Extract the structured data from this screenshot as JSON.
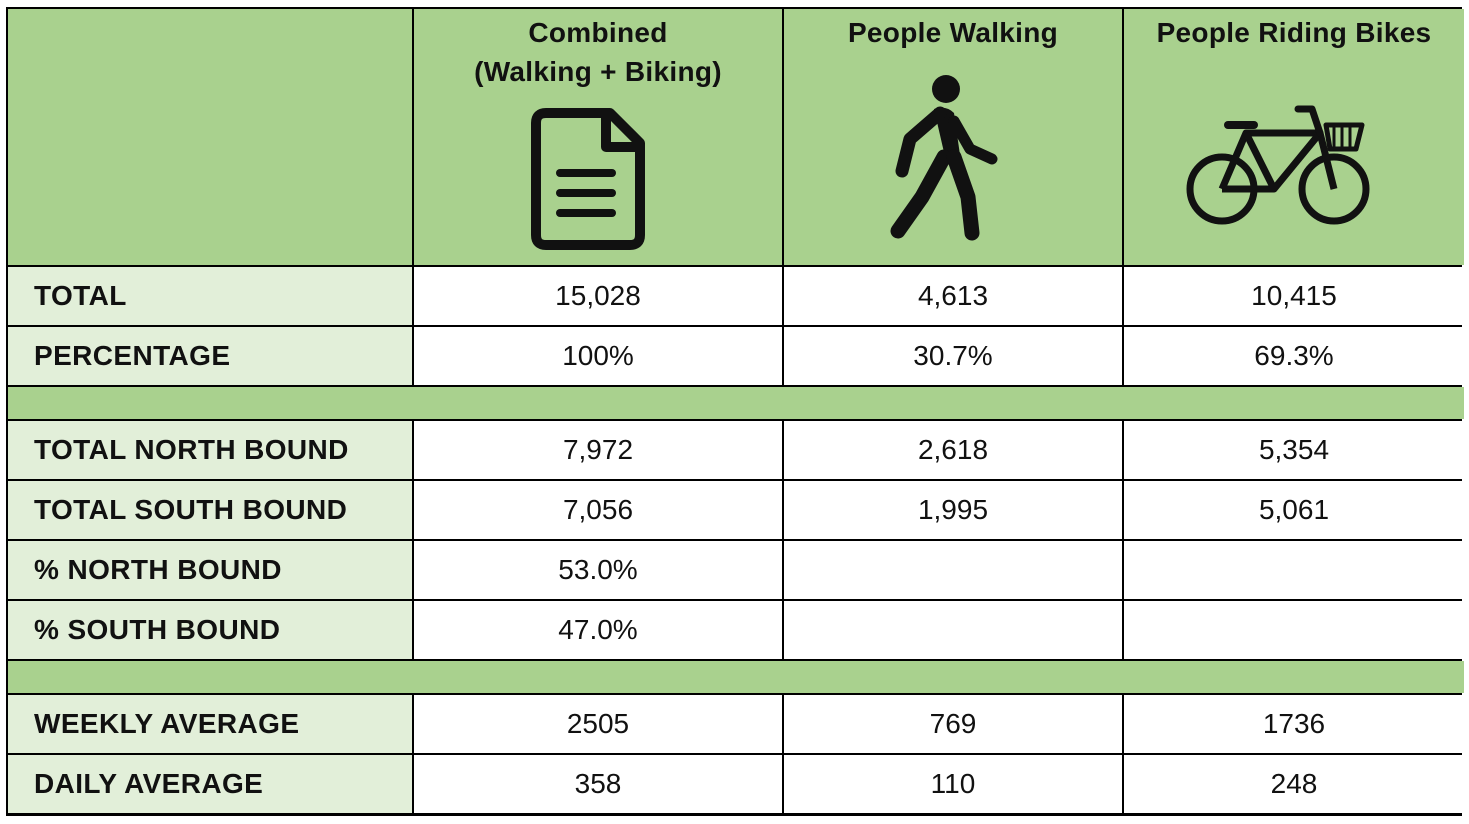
{
  "header": {
    "columns": [
      {
        "title": "Combined\n(Walking + Biking)",
        "icon": "document-icon"
      },
      {
        "title": "People Walking",
        "icon": "pedestrian-icon"
      },
      {
        "title": "People Riding Bikes",
        "icon": "bicycle-icon"
      }
    ]
  },
  "rows": {
    "total": {
      "label": "TOTAL",
      "values": [
        "15,028",
        "4,613",
        "10,415"
      ]
    },
    "percentage": {
      "label": "PERCENTAGE",
      "values": [
        "100%",
        "30.7%",
        "69.3%"
      ]
    },
    "total_north": {
      "label": "TOTAL NORTH BOUND",
      "values": [
        "7,972",
        "2,618",
        "5,354"
      ]
    },
    "total_south": {
      "label": "TOTAL SOUTH BOUND",
      "values": [
        "7,056",
        "1,995",
        "5,061"
      ]
    },
    "pct_north": {
      "label": "% NORTH BOUND",
      "values": [
        "53.0%",
        "",
        ""
      ]
    },
    "pct_south": {
      "label": "% SOUTH BOUND",
      "values": [
        "47.0%",
        "",
        ""
      ]
    },
    "weekly": {
      "label": "WEEKLY AVERAGE",
      "values": [
        "2505",
        "769",
        "1736"
      ]
    },
    "daily": {
      "label": "DAILY AVERAGE",
      "values": [
        "358",
        "110",
        "248"
      ]
    }
  },
  "colors": {
    "header_green": "#a9d18e",
    "label_green": "#e2efd9"
  }
}
